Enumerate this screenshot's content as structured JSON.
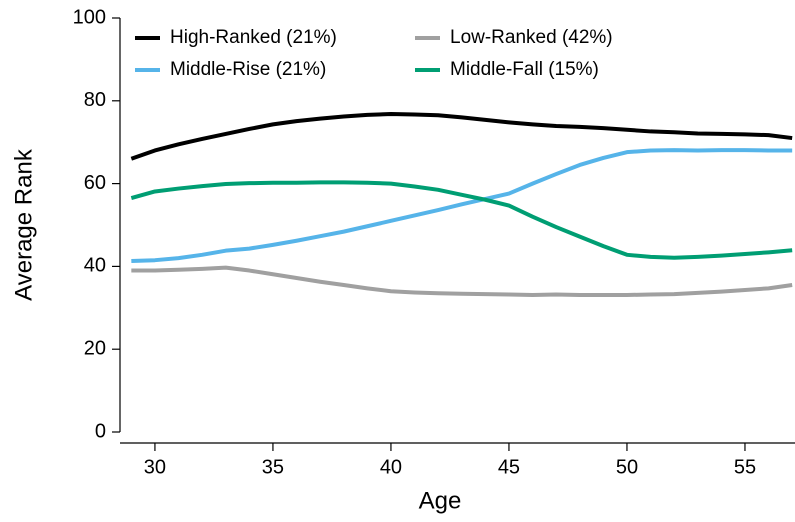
{
  "chart_data": {
    "type": "line",
    "xlabel": "Age",
    "ylabel": "Average Rank",
    "x": [
      29,
      30,
      31,
      32,
      33,
      34,
      35,
      36,
      37,
      38,
      39,
      40,
      41,
      42,
      43,
      44,
      45,
      46,
      47,
      48,
      49,
      50,
      51,
      52,
      53,
      54,
      55,
      56,
      57
    ],
    "series": [
      {
        "name": "High-Ranked (21%)",
        "color": "#000000",
        "values": [
          66,
          68,
          69.5,
          70.8,
          72,
          73.2,
          74.3,
          75.1,
          75.7,
          76.2,
          76.6,
          76.8,
          76.7,
          76.5,
          76,
          75.4,
          74.8,
          74.3,
          73.9,
          73.7,
          73.4,
          73,
          72.6,
          72.4,
          72.1,
          72,
          71.9,
          71.7,
          71
        ]
      },
      {
        "name": "Low-Ranked (42%)",
        "color": "#a0a0a0",
        "values": [
          39,
          39,
          39.2,
          39.4,
          39.7,
          39,
          38.1,
          37.2,
          36.3,
          35.5,
          34.7,
          34,
          33.7,
          33.5,
          33.4,
          33.3,
          33.2,
          33.1,
          33.2,
          33.1,
          33.1,
          33.1,
          33.2,
          33.3,
          33.6,
          33.9,
          34.3,
          34.7,
          35.5
        ]
      },
      {
        "name": "Middle-Rise (21%)",
        "color": "#56b4e9",
        "values": [
          41.3,
          41.5,
          42,
          42.8,
          43.8,
          44.3,
          45.2,
          46.2,
          47.3,
          48.4,
          49.7,
          51,
          52.3,
          53.6,
          55,
          56.3,
          57.6,
          60,
          62.3,
          64.5,
          66.2,
          67.6,
          68,
          68.1,
          68,
          68.1,
          68.1,
          68,
          68
        ]
      },
      {
        "name": "Middle-Fall (15%)",
        "color": "#009e73",
        "values": [
          56.5,
          58.1,
          58.8,
          59.4,
          59.9,
          60.1,
          60.2,
          60.2,
          60.3,
          60.3,
          60.2,
          60,
          59.3,
          58.5,
          57.3,
          56.1,
          54.7,
          52,
          49.5,
          47.2,
          44.9,
          42.8,
          42.3,
          42.1,
          42.3,
          42.6,
          43,
          43.4,
          43.9
        ]
      }
    ],
    "xlim": [
      28.52,
      57.12
    ],
    "ylim": [
      0,
      100
    ],
    "xticks": [
      30,
      35,
      40,
      45,
      50,
      55
    ],
    "yticks": [
      0,
      20,
      40,
      60,
      80,
      100
    ],
    "legend": "top-left"
  }
}
